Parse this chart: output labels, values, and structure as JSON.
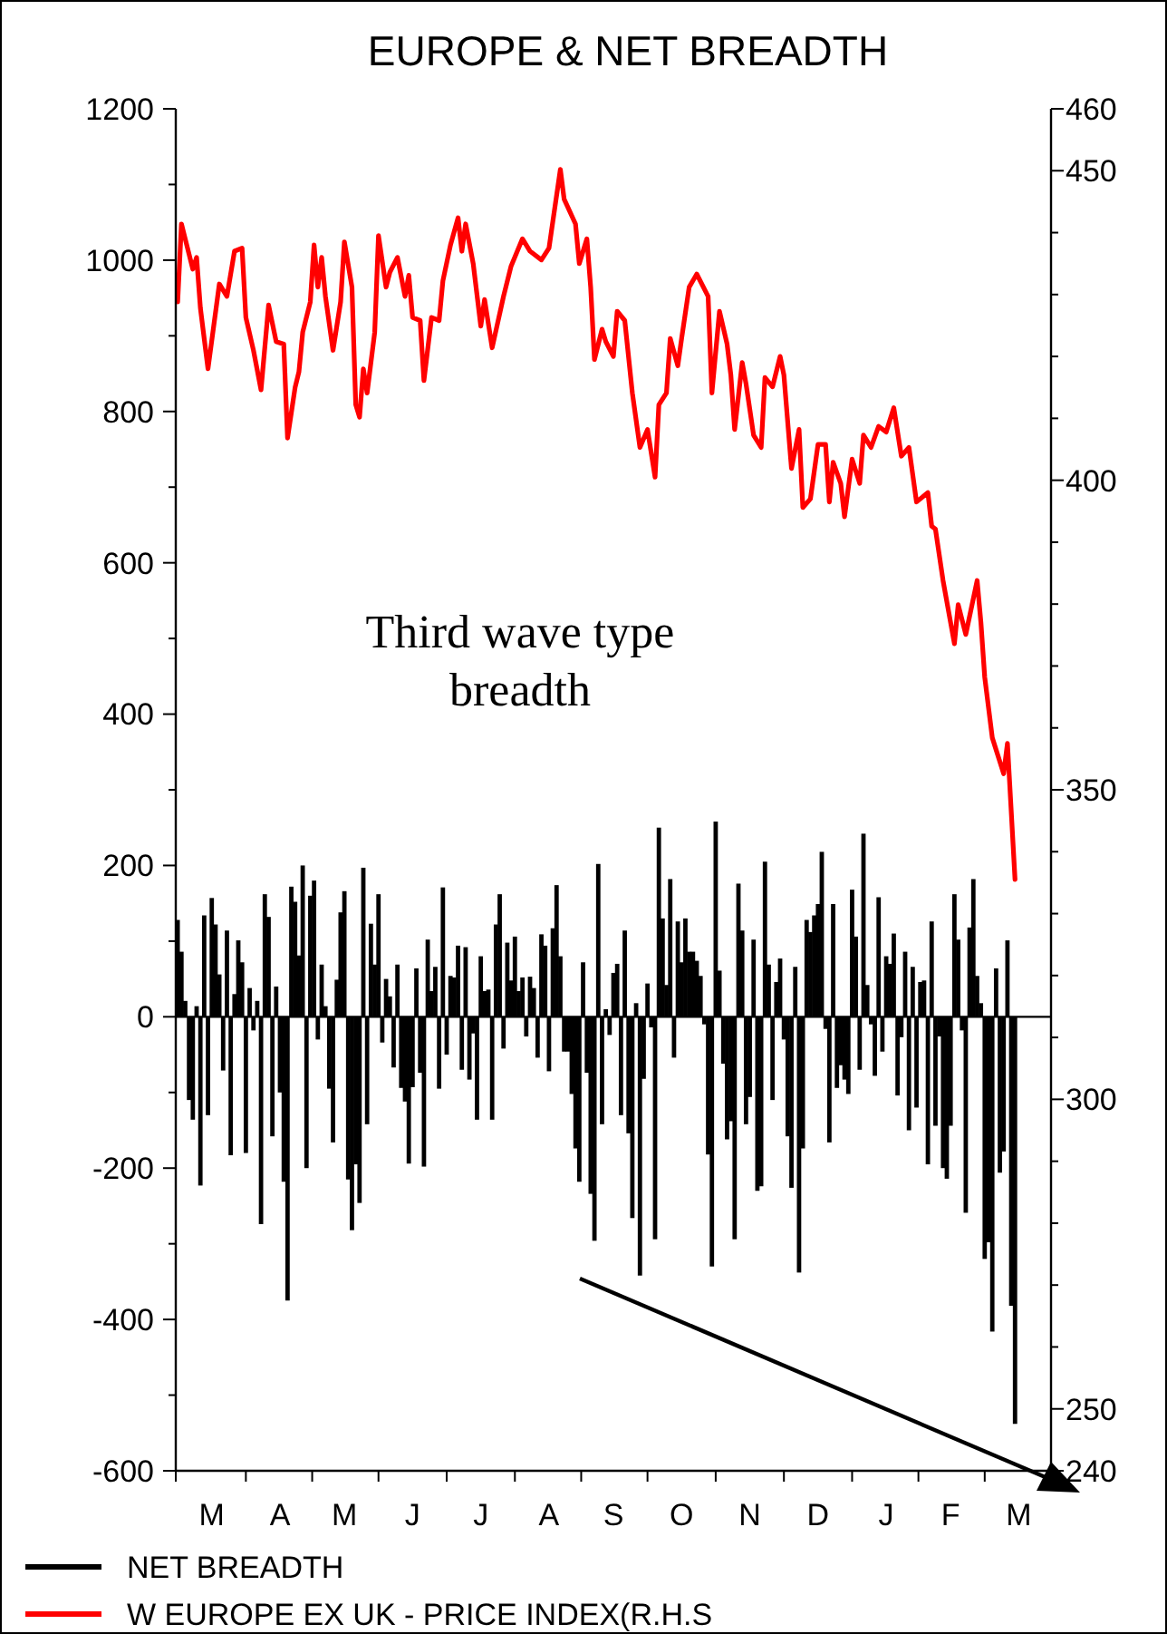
{
  "chart_data": {
    "type": "bar",
    "title": "EUROPE & NET BREADTH",
    "annotations": [
      "Third wave type\nbreadth"
    ],
    "legend": "bottom left",
    "categories": [
      null,
      null,
      null,
      null,
      null,
      null,
      null,
      null,
      null,
      "M",
      null,
      null,
      null,
      null,
      null,
      null,
      null,
      null,
      null,
      null,
      null,
      null,
      null,
      null,
      null,
      null,
      null,
      "A",
      null,
      null,
      null,
      null,
      null,
      null,
      null,
      null,
      null,
      null,
      null,
      null,
      null,
      null,
      null,
      null,
      "M",
      null,
      null,
      null,
      null,
      null,
      null,
      null,
      null,
      null,
      null,
      null,
      null,
      null,
      null,
      null,
      null,
      null,
      "J",
      null,
      null,
      null,
      null,
      null,
      null,
      null,
      null,
      null,
      null,
      null,
      null,
      null,
      null,
      null,
      null,
      null,
      "J",
      null,
      null,
      null,
      null,
      null,
      null,
      null,
      null,
      null,
      null,
      null,
      null,
      null,
      null,
      null,
      null,
      null,
      "A",
      null,
      null,
      null,
      null,
      null,
      null,
      null,
      null,
      null,
      null,
      null,
      null,
      null,
      null,
      null,
      null,
      "S",
      null,
      null,
      null,
      null,
      null,
      null,
      null,
      null,
      null,
      null,
      null,
      null,
      null,
      null,
      null,
      null,
      null,
      "O",
      null,
      null,
      null,
      null,
      null,
      null,
      null,
      null,
      null,
      null,
      null,
      null,
      null,
      null,
      null,
      null,
      null,
      "N",
      null,
      null,
      null,
      null,
      null,
      null,
      null,
      null,
      null,
      null,
      null,
      null,
      null,
      null,
      null,
      null,
      null,
      "D",
      null,
      null,
      null,
      null,
      null,
      null,
      null,
      null,
      null,
      null,
      null,
      null,
      null,
      null,
      null,
      null,
      null,
      "J",
      null,
      null,
      null,
      null,
      null,
      null,
      null,
      null,
      null,
      null,
      null,
      null,
      null,
      null,
      null,
      null,
      "F",
      null,
      null,
      null,
      null,
      null,
      null,
      null,
      null,
      null,
      null,
      null,
      null,
      null,
      null,
      null,
      null,
      null,
      "M",
      null,
      null,
      null,
      null,
      null,
      null,
      null,
      null
    ],
    "ylim": [
      -600,
      1200
    ],
    "yticks": [
      -600,
      {
        "value": -500,
        "label": null
      },
      -400,
      {
        "value": -300,
        "label": null
      },
      -200,
      {
        "value": -100,
        "label": null
      },
      0,
      {
        "value": 100,
        "label": null
      },
      200,
      {
        "value": 300,
        "label": null
      },
      400,
      {
        "value": 500,
        "label": null
      },
      600,
      {
        "value": 700,
        "label": null
      },
      800,
      {
        "value": 900,
        "label": null
      },
      1000,
      {
        "value": 1100,
        "label": null
      },
      1200
    ],
    "y2lim": [
      240,
      460
    ],
    "y2ticks": [
      240,
      250,
      {
        "value": 260,
        "label": null
      },
      {
        "value": 270,
        "label": null
      },
      {
        "value": 280,
        "label": null
      },
      {
        "value": 290,
        "label": null
      },
      300,
      {
        "value": 310,
        "label": null
      },
      {
        "value": 320,
        "label": null
      },
      {
        "value": 330,
        "label": null
      },
      {
        "value": 340,
        "label": null
      },
      350,
      {
        "value": 360,
        "label": null
      },
      {
        "value": 370,
        "label": null
      },
      {
        "value": 380,
        "label": null
      },
      {
        "value": 390,
        "label": null
      },
      400,
      {
        "value": 410,
        "label": null
      },
      {
        "value": 420,
        "label": null
      },
      {
        "value": 430,
        "label": null
      },
      {
        "value": 440,
        "label": null
      },
      450,
      460
    ],
    "series": [
      {
        "name": "NET BREADTH",
        "color": "#000000",
        "values": [
          128,
          86,
          21,
          -110,
          -136,
          14,
          -223,
          134,
          -130,
          157,
          122,
          56,
          -71,
          114,
          -183,
          30,
          101,
          72,
          -180,
          38,
          -18,
          21,
          -274,
          162,
          132,
          -158,
          40,
          -100,
          -218,
          -375,
          172,
          152,
          81,
          200,
          -200,
          160,
          180,
          -30,
          69,
          14,
          -95,
          -166,
          49,
          138,
          166,
          -215,
          -282,
          -195,
          -246,
          197,
          -142,
          123,
          69,
          162,
          -34,
          50,
          27,
          -67,
          69,
          -94,
          -112,
          -194,
          -93,
          64,
          -74,
          -198,
          102,
          34,
          66,
          -95,
          171,
          -50,
          54,
          52,
          94,
          -70,
          92,
          -83,
          -22,
          -136,
          80,
          34,
          36,
          -136,
          122,
          162,
          -42,
          98,
          48,
          106,
          34,
          52,
          -26,
          53,
          38,
          -54,
          109,
          94,
          -72,
          117,
          174,
          80,
          -46,
          -46,
          -102,
          -174,
          -218,
          72,
          -74,
          -234,
          -296,
          202,
          -142,
          10,
          -24,
          58,
          70,
          -130,
          114,
          -154,
          -266,
          18,
          -342,
          -82,
          44,
          -14,
          -294,
          250,
          130,
          42,
          182,
          -54,
          126,
          72,
          130,
          86,
          86,
          74,
          54,
          -10,
          -182,
          -330,
          258,
          61,
          -62,
          -162,
          -138,
          -294,
          176,
          114,
          -142,
          -106,
          102,
          -230,
          -224,
          205,
          69,
          -110,
          46,
          77,
          -30,
          -158,
          -226,
          66,
          -338,
          -174,
          128,
          112,
          134,
          149,
          218,
          -16,
          -166,
          149,
          -94,
          -64,
          -83,
          -102,
          168,
          106,
          -70,
          242,
          42,
          -10,
          -78,
          158,
          -46,
          80,
          70,
          110,
          -104,
          -27,
          86,
          -150,
          66,
          -120,
          46,
          48,
          -195,
          126,
          -144,
          -26,
          -200,
          -214,
          -144,
          162,
          102,
          -18,
          -259,
          118,
          182,
          54,
          18,
          -320,
          -298,
          -416,
          64,
          -206,
          -178,
          101,
          -382,
          -538,
          null,
          null,
          null,
          null,
          null,
          null,
          null,
          null,
          null
        ]
      },
      {
        "name": "W EUROPE EX UK - PRICE INDEX(R.H.S",
        "type": "line",
        "axis": "y2",
        "color": "#ff0000",
        "values": [
          428.8,
          441.4,
          null,
          null,
          434.1,
          436,
          427.8,
          null,
          418,
          null,
          null,
          431.7,
          null,
          429.7,
          null,
          437,
          null,
          437.5,
          426.3,
          null,
          421,
          null,
          414.6,
          null,
          428.3,
          null,
          422.4,
          null,
          422,
          406.8,
          null,
          415,
          417.5,
          423.9,
          null,
          428.8,
          438,
          431.2,
          436,
          429.7,
          null,
          421,
          null,
          428.8,
          438.5,
          null,
          431.2,
          412.2,
          410.2,
          418,
          414.1,
          null,
          423.9,
          439.5,
          null,
          431.2,
          433.6,
          null,
          436,
          null,
          429.7,
          433.1,
          426.3,
          null,
          425.8,
          416.1,
          null,
          426.3,
          null,
          425.8,
          432.2,
          null,
          438,
          null,
          442.4,
          437,
          441.4,
          null,
          435,
          null,
          424.9,
          429.2,
          null,
          421.4,
          null,
          null,
          429.7,
          null,
          434.6,
          null,
          null,
          439,
          null,
          437,
          null,
          null,
          435.6,
          null,
          437.5,
          null,
          null,
          450.2,
          445.4,
          null,
          null,
          441.4,
          435,
          null,
          439,
          431.2,
          419.5,
          null,
          424.4,
          422.4,
          null,
          420,
          427.3,
          null,
          425.8,
          null,
          414.1,
          null,
          405.3,
          null,
          408.2,
          null,
          400.5,
          412.2,
          null,
          414.1,
          422.9,
          null,
          418.5,
          422.9,
          null,
          431.2,
          null,
          433.3,
          null,
          null,
          429.7,
          414.1,
          null,
          427.3,
          null,
          422,
          417,
          408.2,
          null,
          419,
          415.6,
          null,
          407.3,
          null,
          405.3,
          416.6,
          null,
          415.1,
          null,
          420,
          417,
          null,
          401.9,
          null,
          408.2,
          395.6,
          null,
          397,
          null,
          405.8,
          null,
          405.8,
          396.5,
          402.9,
          null,
          399.5,
          394.1,
          null,
          403.4,
          null,
          399.5,
          407.3,
          null,
          405.3,
          null,
          408.7,
          null,
          407.8,
          null,
          411.7,
          null,
          403.9,
          null,
          405.3,
          null,
          396.5,
          null,
          null,
          398,
          392.6,
          392.1,
          null,
          383.8,
          null,
          null,
          373.6,
          379.9,
          null,
          375.1,
          null,
          null,
          383.8,
          377,
          368.2,
          null,
          358.4,
          null,
          null,
          352.6,
          357.5,
          null,
          335.5,
          null,
          null,
          null,
          null,
          null,
          null,
          null,
          null,
          null
        ]
      }
    ]
  }
}
